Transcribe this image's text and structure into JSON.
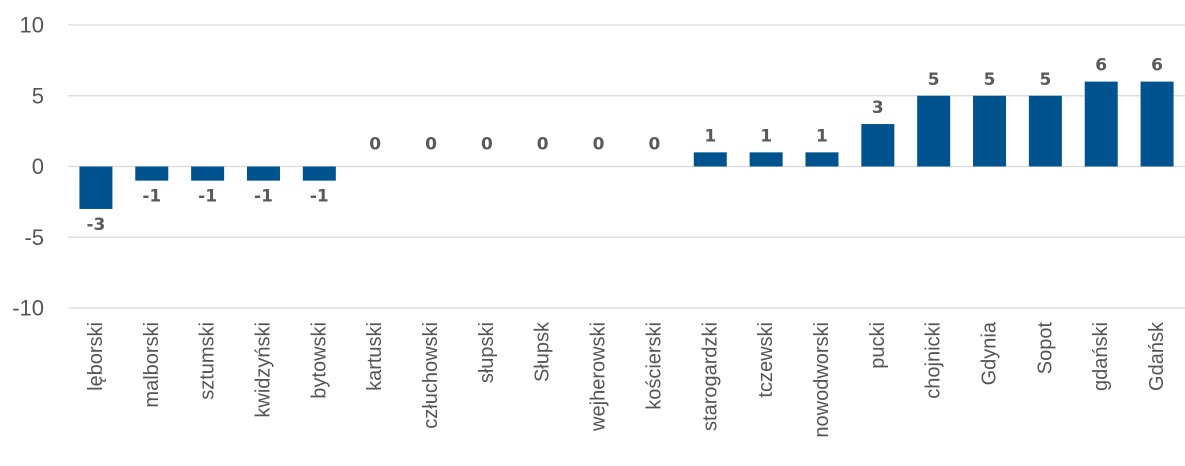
{
  "chart_data": {
    "type": "bar",
    "categories": [
      "lęborski",
      "malborski",
      "sztumski",
      "kwidzyński",
      "bytowski",
      "kartuski",
      "człuchowski",
      "słupski",
      "Słupsk",
      "wejherowski",
      "kościerski",
      "starogardzki",
      "tczewski",
      "nowodworski",
      "pucki",
      "chojnicki",
      "Gdynia",
      "Sopot",
      "gdański",
      "Gdańsk"
    ],
    "values": [
      -3,
      -1,
      -1,
      -1,
      -1,
      0,
      0,
      0,
      0,
      0,
      0,
      1,
      1,
      1,
      3,
      5,
      5,
      5,
      6,
      6
    ],
    "ylim": [
      -10,
      10
    ],
    "yticks": [
      10,
      5,
      0,
      -5,
      -10
    ],
    "grid": true,
    "legend": "none",
    "bar_color": "#00538F"
  }
}
